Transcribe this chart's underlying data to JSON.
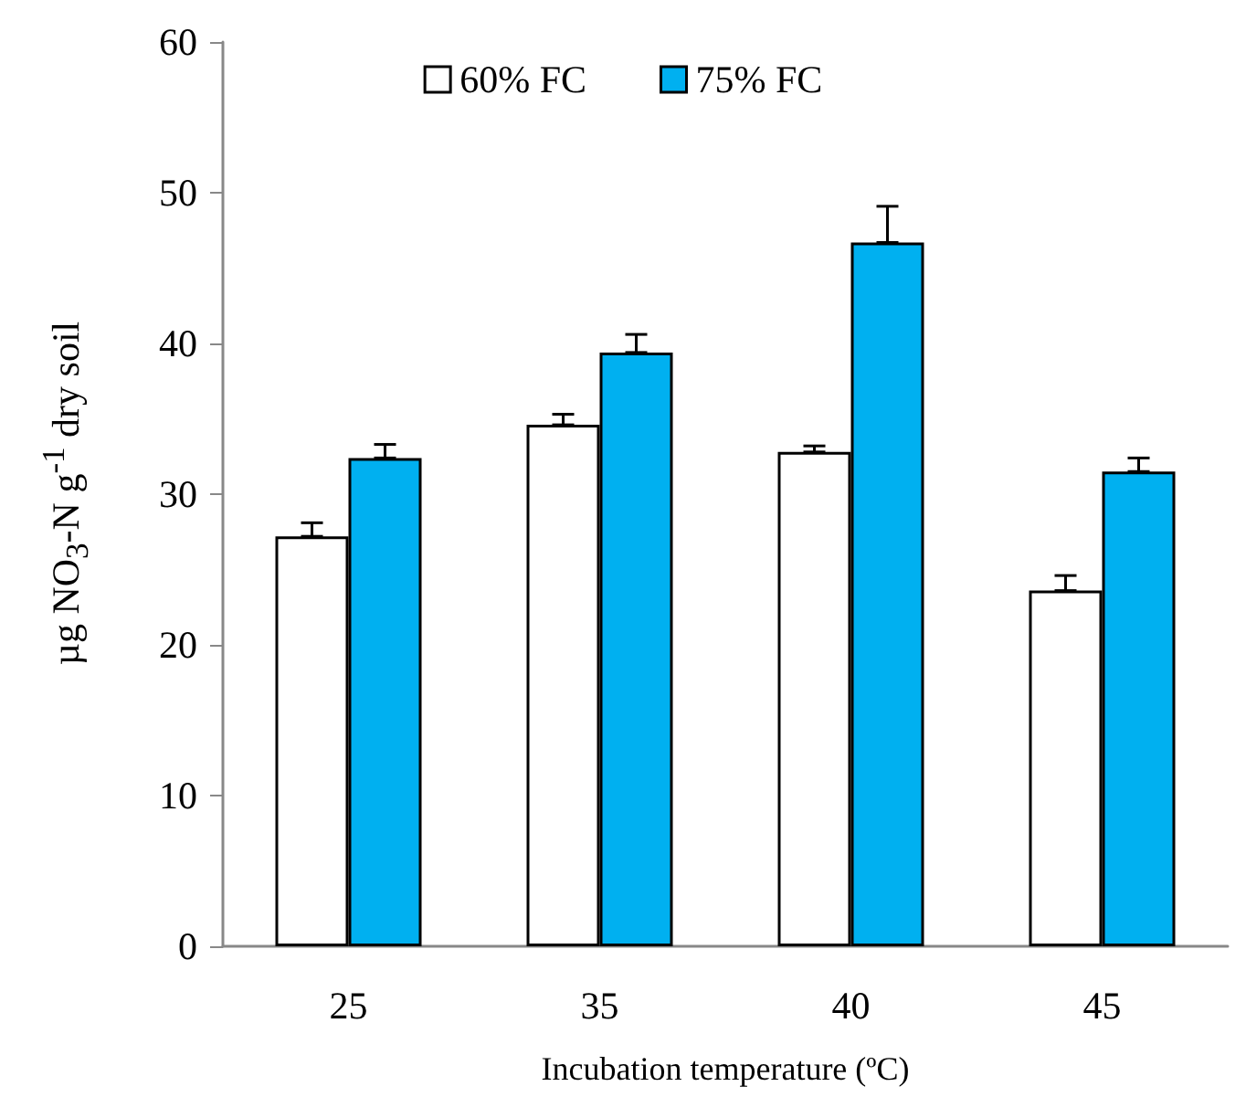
{
  "chart_data": {
    "type": "bar",
    "xlabel": "Incubation temperature (ºC)",
    "ylabel": "µg NO$_{3}$-N g$^{-1}$ dry soil",
    "categories": [
      "25",
      "35",
      "40",
      "45"
    ],
    "series": [
      {
        "name": "60% FC",
        "color": "#ffffff",
        "values": [
          27.2,
          34.6,
          32.8,
          23.6
        ],
        "errors": [
          [
            27.2,
            28.1
          ],
          [
            34.6,
            35.3
          ],
          [
            32.8,
            33.2
          ],
          [
            23.6,
            24.6
          ]
        ]
      },
      {
        "name": "75% FC",
        "color": "#00b0f0",
        "values": [
          32.4,
          39.4,
          46.7,
          31.5
        ],
        "errors": [
          [
            32.4,
            33.3
          ],
          [
            39.4,
            40.6
          ],
          [
            46.7,
            49.1
          ],
          [
            31.5,
            32.4
          ]
        ]
      }
    ],
    "ylim": [
      0,
      60
    ],
    "yticks": [
      0,
      10,
      20,
      30,
      40,
      50,
      60
    ],
    "grid": false,
    "legend": "top"
  }
}
